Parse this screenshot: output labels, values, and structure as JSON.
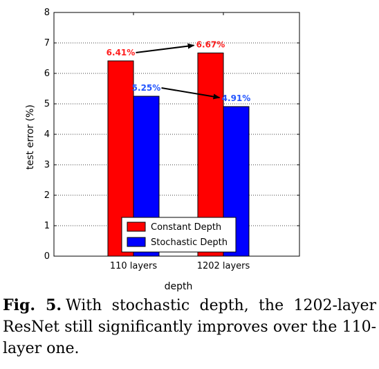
{
  "chart_data": {
    "type": "bar",
    "categories": [
      "110 layers",
      "1202 layers"
    ],
    "series": [
      {
        "name": "Constant Depth",
        "values": [
          6.41,
          6.67
        ],
        "color": "#ff0000",
        "labels": [
          "6.41%",
          "6.67%"
        ],
        "label_color": "#ff2020"
      },
      {
        "name": "Stochastic Depth",
        "values": [
          5.25,
          4.91
        ],
        "color": "#0000ff",
        "labels": [
          "5.25%",
          "4.91%"
        ],
        "label_color": "#2255ff"
      }
    ],
    "xlabel": "depth",
    "ylabel": "test error (%)",
    "ylim": [
      0,
      8
    ],
    "yticks": [
      "0",
      "1",
      "2",
      "3",
      "4",
      "5",
      "6",
      "7",
      "8"
    ],
    "grid": true,
    "legend_position": "bottom-center"
  },
  "caption": {
    "label": "Fig. 5.",
    "text": "With stochastic depth, the 1202-layer ResNet still significantly improves over the 110-layer one."
  }
}
